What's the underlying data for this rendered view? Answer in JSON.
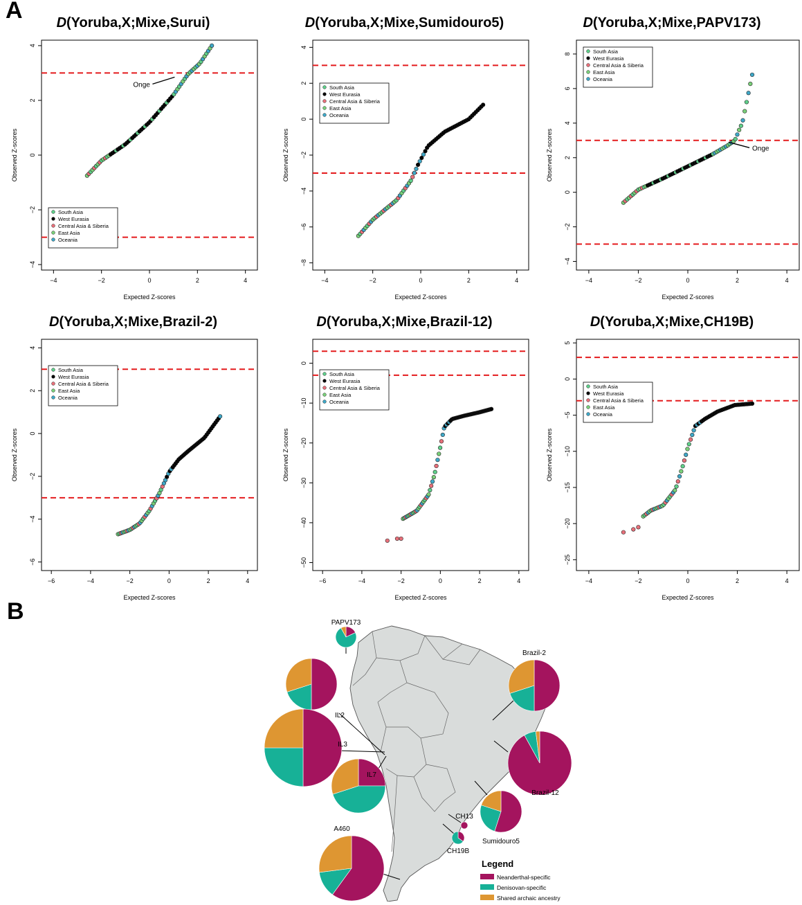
{
  "panels": {
    "a": "A",
    "b": "B"
  },
  "colors": {
    "south_asia": "#5fcf8a",
    "west_eurasia": "#000000",
    "central_asia": "#e8707a",
    "east_asia": "#7ad07a",
    "oceania": "#3fa8c8",
    "threshold": "#e41a1c",
    "neanderthal": "#a4145e",
    "denisovan": "#17b197",
    "shared": "#de9632",
    "land": "#d9dcdb"
  },
  "chart_data": [
    {
      "type": "scatter",
      "title_prefix": "D",
      "title_rest": "(Yoruba,X;Mixe,Surui)",
      "xlabel": "Expected Z-scores",
      "ylabel": "Observed Z-scores",
      "xlim": [
        -4.5,
        4.5
      ],
      "ylim": [
        -4.2,
        4.2
      ],
      "xticks": [
        -4,
        -2,
        0,
        2,
        4
      ],
      "yticks": [
        -4,
        -2,
        0,
        2,
        4
      ],
      "hlines": [
        3,
        -3
      ],
      "legend": [
        "South Asia",
        "West Eurasia",
        "Central Asia & Siberia",
        "East Asia",
        "Oceania"
      ],
      "legend_pos": "bottom-left",
      "annotation": {
        "text": "Onge",
        "x": 1.05,
        "y": 2.85
      },
      "curve": [
        [
          -2.6,
          -0.75
        ],
        [
          -2,
          -0.2
        ],
        [
          -1,
          0.4
        ],
        [
          0,
          1.2
        ],
        [
          1,
          2.2
        ],
        [
          1.6,
          2.95
        ],
        [
          2.1,
          3.35
        ],
        [
          2.6,
          4.0
        ]
      ]
    },
    {
      "type": "scatter",
      "title_prefix": "D",
      "title_rest": "(Yoruba,X;Mixe,Sumidouro5)",
      "xlabel": "Expected Z-scores",
      "ylabel": "Observed Z-scores",
      "xlim": [
        -4.5,
        4.5
      ],
      "ylim": [
        -8.4,
        4.4
      ],
      "xticks": [
        -4,
        -2,
        0,
        2,
        4
      ],
      "yticks": [
        -8,
        -6,
        -4,
        -2,
        0,
        2,
        4
      ],
      "hlines": [
        3,
        -3
      ],
      "legend": [
        "South Asia",
        "West Eurasia",
        "Central Asia & Siberia",
        "East Asia",
        "Oceania"
      ],
      "legend_pos": "top-left",
      "curve": [
        [
          -2.6,
          -6.5
        ],
        [
          -2,
          -5.6
        ],
        [
          -1,
          -4.5
        ],
        [
          -0.4,
          -3.4
        ],
        [
          -0.1,
          -2.5
        ],
        [
          0.3,
          -1.5
        ],
        [
          1,
          -0.7
        ],
        [
          2,
          0
        ],
        [
          2.6,
          0.8
        ]
      ]
    },
    {
      "type": "scatter",
      "title_prefix": "D",
      "title_rest": "(Yoruba,X;Mixe,PAPV173)",
      "xlabel": "Expected Z-scores",
      "ylabel": "Observed Z-scores",
      "xlim": [
        -4.5,
        4.5
      ],
      "ylim": [
        -4.5,
        8.8
      ],
      "xticks": [
        -4,
        -2,
        0,
        2,
        4
      ],
      "yticks": [
        -4,
        -2,
        0,
        2,
        4,
        6,
        8
      ],
      "hlines": [
        3,
        -3
      ],
      "legend": [
        "South Asia",
        "West Eurasia",
        "Central Asia & Siberia",
        "East Asia",
        "Oceania"
      ],
      "legend_pos": "top-left",
      "annotation": {
        "text": "Onge",
        "x": 1.65,
        "y": 2.9
      },
      "curve": [
        [
          -2.6,
          -0.6
        ],
        [
          -2,
          0.15
        ],
        [
          -1,
          0.8
        ],
        [
          0,
          1.5
        ],
        [
          1,
          2.2
        ],
        [
          1.6,
          2.7
        ],
        [
          1.9,
          3.0
        ],
        [
          2.1,
          3.7
        ],
        [
          2.2,
          4.0
        ],
        [
          2.6,
          6.8
        ]
      ]
    },
    {
      "type": "scatter",
      "title_prefix": "D",
      "title_rest": "(Yoruba,X;Mixe,Brazil-2)",
      "xlabel": "Expected Z-scores",
      "ylabel": "Observed Z-scores",
      "xlim": [
        -6.5,
        4.5
      ],
      "ylim": [
        -6.4,
        4.4
      ],
      "xticks": [
        -6,
        -4,
        -2,
        0,
        2,
        4
      ],
      "yticks": [
        -6,
        -4,
        -2,
        0,
        2,
        4
      ],
      "hlines": [
        3,
        -3
      ],
      "legend": [
        "South Asia",
        "West Eurasia",
        "Central Asia & Siberia",
        "East Asia",
        "Oceania"
      ],
      "legend_pos": "top-left",
      "curve": [
        [
          -2.6,
          -4.7
        ],
        [
          -2,
          -4.5
        ],
        [
          -1.5,
          -4.2
        ],
        [
          -1,
          -3.6
        ],
        [
          -0.5,
          -2.8
        ],
        [
          0,
          -1.8
        ],
        [
          0.5,
          -1.2
        ],
        [
          1,
          -0.8
        ],
        [
          1.8,
          -0.2
        ],
        [
          2.6,
          0.8
        ]
      ]
    },
    {
      "type": "scatter",
      "title_prefix": "D",
      "title_rest": "(Yoruba,X;Mixe,Brazil-12)",
      "xlabel": "Expected Z-scores",
      "ylabel": "Observed Z-scores",
      "xlim": [
        -6.5,
        4.5
      ],
      "ylim": [
        -52,
        6
      ],
      "xticks": [
        -6,
        -4,
        -2,
        0,
        2,
        4
      ],
      "yticks": [
        -50,
        -40,
        -30,
        -20,
        -10,
        0
      ],
      "hlines": [
        3,
        -3
      ],
      "legend": [
        "South Asia",
        "West Eurasia",
        "Central Asia & Siberia",
        "East Asia",
        "Oceania"
      ],
      "legend_pos": "top-left",
      "extra_points": [
        [
          -2.7,
          -44.5
        ],
        [
          -2.2,
          -44
        ],
        [
          -2.0,
          -44
        ]
      ],
      "curve": [
        [
          -1.9,
          -39
        ],
        [
          -1.2,
          -37
        ],
        [
          -0.6,
          -33
        ],
        [
          -0.3,
          -28
        ],
        [
          0,
          -21
        ],
        [
          0.2,
          -16
        ],
        [
          0.6,
          -14
        ],
        [
          1.2,
          -13.2
        ],
        [
          2.0,
          -12.3
        ],
        [
          2.6,
          -11.5
        ]
      ]
    },
    {
      "type": "scatter",
      "title_prefix": "D",
      "title_rest": "(Yoruba,X;Mixe,CH19B)",
      "xlabel": "Expected Z-scores",
      "ylabel": "Observed Z-scores",
      "xlim": [
        -4.5,
        4.5
      ],
      "ylim": [
        -26.5,
        5.5
      ],
      "xticks": [
        -4,
        -2,
        0,
        2,
        4
      ],
      "yticks": [
        -25,
        -20,
        -15,
        -10,
        -5,
        0,
        5
      ],
      "hlines": [
        3,
        -3
      ],
      "legend": [
        "South Asia",
        "West Eurasia",
        "Central Asia & Siberia",
        "East Asia",
        "Oceania"
      ],
      "legend_pos": "top-left",
      "extra_points": [
        [
          -2.6,
          -21.2
        ],
        [
          -2.2,
          -20.8
        ],
        [
          -2.0,
          -20.5
        ]
      ],
      "curve": [
        [
          -1.8,
          -19
        ],
        [
          -1.5,
          -18.2
        ],
        [
          -1.0,
          -17.5
        ],
        [
          -0.5,
          -15.3
        ],
        [
          -0.2,
          -12
        ],
        [
          0,
          -9.5
        ],
        [
          0.3,
          -6.5
        ],
        [
          0.7,
          -5.5
        ],
        [
          1.2,
          -4.5
        ],
        [
          1.9,
          -3.6
        ],
        [
          2.6,
          -3.4
        ]
      ]
    },
    {
      "type": "pie",
      "legend_title": "Legend",
      "legend": [
        "Neanderthal-specific",
        "Denisovan-specific",
        "Shared archaic ancestry"
      ],
      "pies": [
        {
          "label": "PAPV173",
          "values": [
            0.18,
            0.74,
            0.08
          ]
        },
        {
          "label": "IL2",
          "values": [
            0.5,
            0.2,
            0.3
          ]
        },
        {
          "label": "IL3",
          "values": [
            0.5,
            0.25,
            0.25
          ]
        },
        {
          "label": "IL7",
          "values": [
            0.25,
            0.45,
            0.3
          ]
        },
        {
          "label": "A460",
          "values": [
            0.6,
            0.13,
            0.27
          ]
        },
        {
          "label": "Brazil-2",
          "values": [
            0.5,
            0.2,
            0.3
          ]
        },
        {
          "label": "Brazil-12",
          "values": [
            0.92,
            0.06,
            0.02
          ]
        },
        {
          "label": "Sumidouro5",
          "values": [
            0.55,
            0.25,
            0.2
          ]
        },
        {
          "label": "CH13",
          "values": [
            1.0,
            0,
            0
          ]
        },
        {
          "label": "CH19B",
          "values": [
            0.35,
            0.65,
            0
          ]
        }
      ]
    }
  ]
}
